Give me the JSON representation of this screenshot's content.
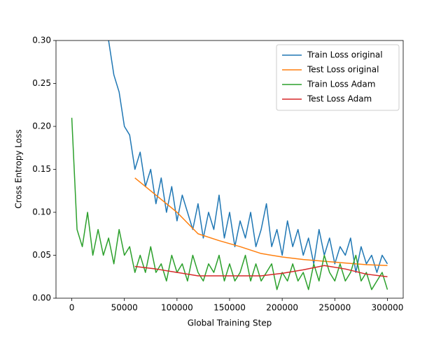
{
  "chart_data": {
    "type": "line",
    "xlabel": "Global Training Step",
    "ylabel": "Cross Entropy Loss",
    "xlim": [
      -15000,
      315000
    ],
    "ylim": [
      0,
      0.3
    ],
    "xticks": [
      0,
      50000,
      100000,
      150000,
      200000,
      250000,
      300000
    ],
    "yticks": [
      {
        "value": 0,
        "label": "0.00"
      },
      {
        "value": 0.05,
        "label": "0.05"
      },
      {
        "value": 0.1,
        "label": "0.10"
      },
      {
        "value": 0.15,
        "label": "0.15"
      },
      {
        "value": 0.2,
        "label": "0.20"
      },
      {
        "value": 0.25,
        "label": "0.25"
      },
      {
        "value": 0.3,
        "label": "0.30"
      }
    ],
    "legend": "upper right",
    "series": [
      {
        "name": "Train Loss original",
        "color": "#1f77b4",
        "x": [
          30000,
          35000,
          40000,
          45000,
          50000,
          55000,
          60000,
          65000,
          70000,
          75000,
          80000,
          85000,
          90000,
          95000,
          100000,
          105000,
          110000,
          115000,
          120000,
          125000,
          130000,
          135000,
          140000,
          145000,
          150000,
          155000,
          160000,
          165000,
          170000,
          175000,
          180000,
          185000,
          190000,
          195000,
          200000,
          205000,
          210000,
          215000,
          220000,
          225000,
          230000,
          235000,
          240000,
          245000,
          250000,
          255000,
          260000,
          265000,
          270000,
          275000,
          280000,
          285000,
          290000,
          295000,
          300000
        ],
        "values": [
          0.33,
          0.3,
          0.26,
          0.24,
          0.2,
          0.19,
          0.15,
          0.17,
          0.13,
          0.15,
          0.11,
          0.14,
          0.1,
          0.13,
          0.09,
          0.12,
          0.1,
          0.08,
          0.11,
          0.07,
          0.1,
          0.08,
          0.12,
          0.07,
          0.1,
          0.06,
          0.09,
          0.07,
          0.1,
          0.06,
          0.08,
          0.11,
          0.06,
          0.08,
          0.05,
          0.09,
          0.06,
          0.08,
          0.05,
          0.07,
          0.04,
          0.08,
          0.05,
          0.07,
          0.04,
          0.06,
          0.05,
          0.07,
          0.03,
          0.06,
          0.04,
          0.05,
          0.03,
          0.05,
          0.04
        ]
      },
      {
        "name": "Test Loss original",
        "color": "#ff7f0e",
        "x": [
          60000,
          80000,
          100000,
          120000,
          140000,
          160000,
          180000,
          200000,
          220000,
          240000,
          260000,
          280000,
          300000
        ],
        "values": [
          0.14,
          0.12,
          0.1,
          0.075,
          0.067,
          0.06,
          0.052,
          0.048,
          0.045,
          0.043,
          0.041,
          0.039,
          0.038
        ]
      },
      {
        "name": "Train Loss Adam",
        "color": "#2ca02c",
        "x": [
          0,
          5000,
          10000,
          15000,
          20000,
          25000,
          30000,
          35000,
          40000,
          45000,
          50000,
          55000,
          60000,
          65000,
          70000,
          75000,
          80000,
          85000,
          90000,
          95000,
          100000,
          105000,
          110000,
          115000,
          120000,
          125000,
          130000,
          135000,
          140000,
          145000,
          150000,
          155000,
          160000,
          165000,
          170000,
          175000,
          180000,
          185000,
          190000,
          195000,
          200000,
          205000,
          210000,
          215000,
          220000,
          225000,
          230000,
          235000,
          240000,
          245000,
          250000,
          255000,
          260000,
          265000,
          270000,
          275000,
          280000,
          285000,
          290000,
          295000,
          300000
        ],
        "values": [
          0.21,
          0.08,
          0.06,
          0.1,
          0.05,
          0.08,
          0.05,
          0.07,
          0.04,
          0.08,
          0.05,
          0.06,
          0.03,
          0.05,
          0.03,
          0.06,
          0.03,
          0.04,
          0.02,
          0.05,
          0.03,
          0.04,
          0.02,
          0.05,
          0.03,
          0.02,
          0.04,
          0.03,
          0.05,
          0.02,
          0.04,
          0.02,
          0.03,
          0.05,
          0.02,
          0.04,
          0.02,
          0.03,
          0.04,
          0.01,
          0.03,
          0.02,
          0.04,
          0.02,
          0.03,
          0.01,
          0.04,
          0.02,
          0.05,
          0.03,
          0.02,
          0.04,
          0.02,
          0.03,
          0.05,
          0.02,
          0.03,
          0.01,
          0.02,
          0.03,
          0.01
        ]
      },
      {
        "name": "Test Loss Adam",
        "color": "#d62728",
        "x": [
          60000,
          80000,
          100000,
          120000,
          140000,
          160000,
          180000,
          200000,
          220000,
          240000,
          260000,
          280000,
          300000
        ],
        "values": [
          0.037,
          0.034,
          0.03,
          0.026,
          0.026,
          0.026,
          0.026,
          0.029,
          0.033,
          0.038,
          0.034,
          0.028,
          0.025
        ]
      }
    ]
  }
}
